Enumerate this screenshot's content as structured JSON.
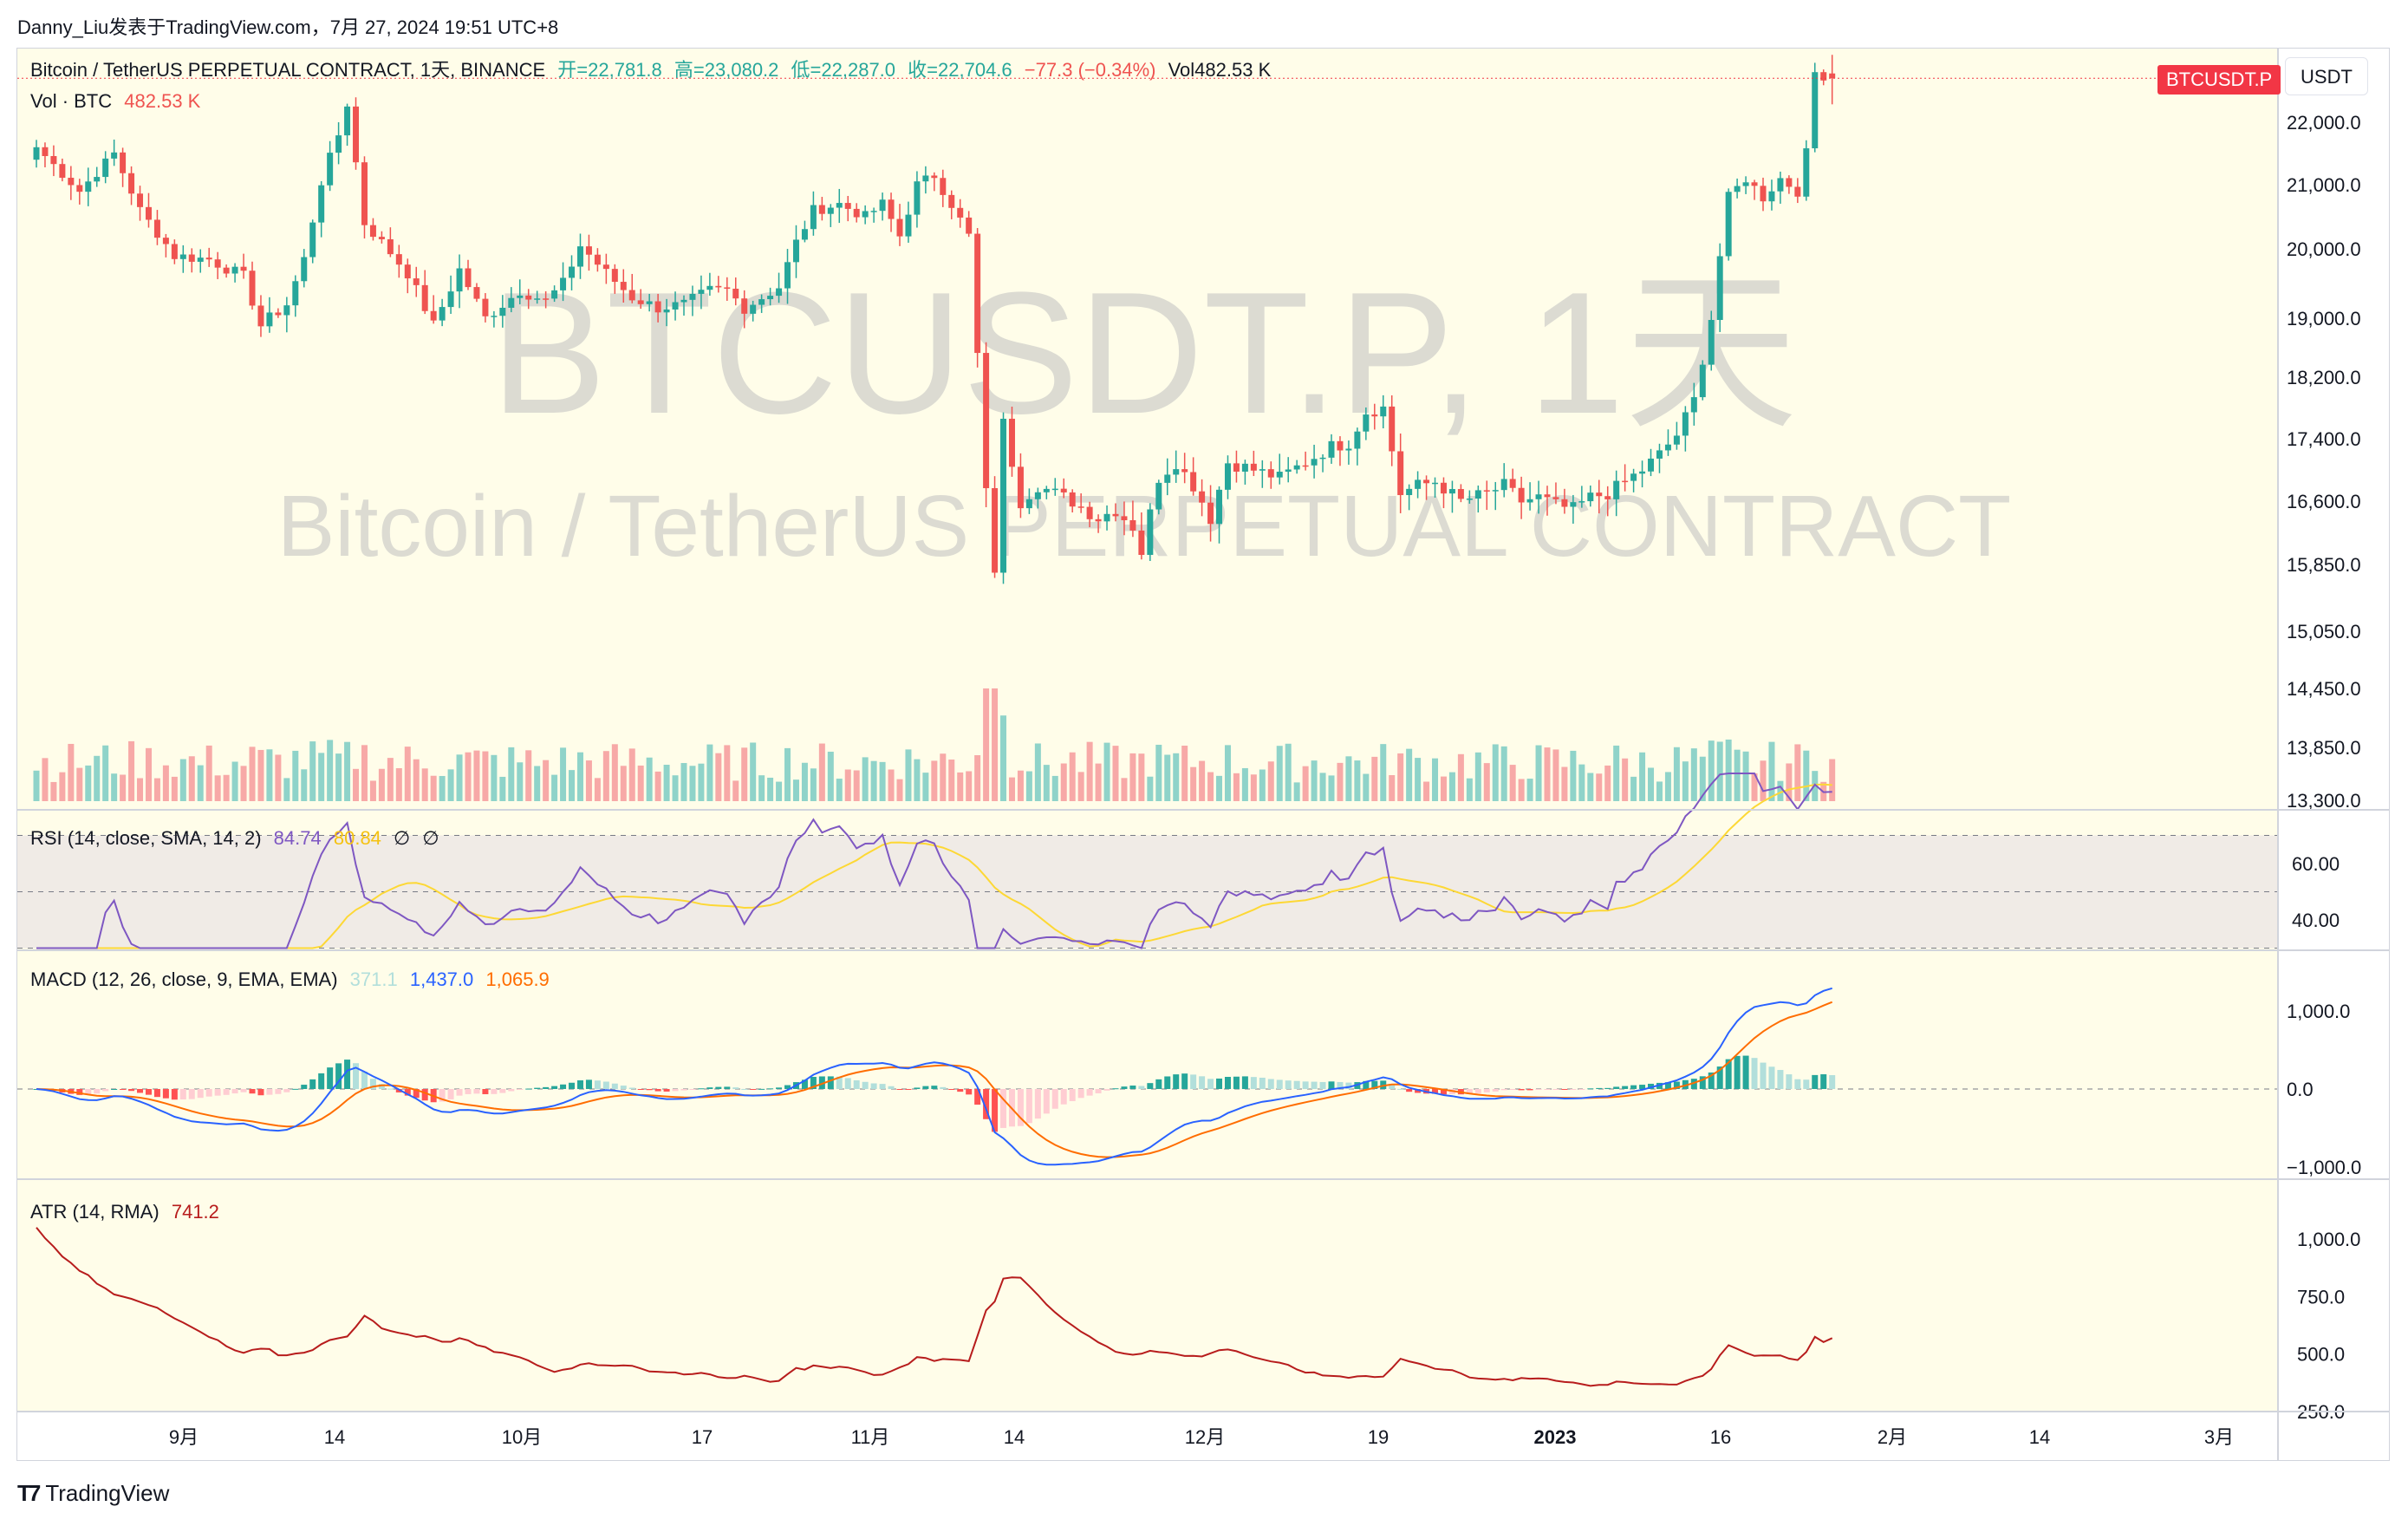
{
  "author": "Danny_Liu发表于TradingView.com，7月 27, 2024 19:51 UTC+8",
  "brand": "TradingView",
  "watermark": {
    "symbol": "BTCUSDT.P, 1天",
    "description": "Bitcoin / TetherUS PERPETUAL CONTRACT"
  },
  "header": {
    "instrument": "Bitcoin / TetherUS PERPETUAL CONTRACT, 1天, BINANCE",
    "open": "开=22,781.8",
    "high": "高=23,080.2",
    "low": "低=22,287.0",
    "close": "收=22,704.6",
    "change": "−77.3 (−0.34%)",
    "volume": "Vol482.53 K",
    "vol_label": "Vol · BTC",
    "vol_value": "482.53 K"
  },
  "price_tag": "BTCUSDT.P",
  "currency": "USDT",
  "colors": {
    "up": "#26a69a",
    "down": "#ef5350",
    "up_vol": "#8fd3c9",
    "down_vol": "#f7a9a7",
    "rsi": "#7e57c2",
    "rsi_ma": "#fdd835",
    "macd": "#2962ff",
    "signal": "#ff6d00",
    "atr": "#b71c1c",
    "bg": "#fffde9"
  },
  "indicators": {
    "rsi": {
      "label": "RSI (14, close, SMA, 14, 2)",
      "value": "84.74",
      "ma": "80.84",
      "extra1": "∅",
      "extra2": "∅",
      "ticks": [
        "60.00",
        "40.00"
      ]
    },
    "macd": {
      "label": "MACD (12, 26, close, 9, EMA, EMA)",
      "hist": "371.1",
      "macd": "1,437.0",
      "signal": "1,065.9",
      "ticks": [
        "1,000.0",
        "0.0",
        "−1,000.0"
      ]
    },
    "atr": {
      "label": "ATR (14, RMA)",
      "value": "741.2",
      "ticks": [
        "1,000.0",
        "750.0",
        "500.0",
        "250.0"
      ]
    }
  },
  "x_axis_labels": [
    "9月",
    "14",
    "10月",
    "17",
    "11月",
    "14",
    "12月",
    "19",
    "2023",
    "16",
    "2月",
    "14",
    "3月"
  ],
  "chart_data": {
    "type": "candlestick",
    "symbol": "BTCUSDT.P",
    "y_ticks": [
      22000,
      21000,
      20000,
      19000,
      18200,
      17400,
      16600,
      15850,
      15050,
      14450,
      13850,
      13300
    ],
    "first_date": "2022-08-26",
    "last_close": 22704.6,
    "anchors": [
      [
        0,
        21600
      ],
      [
        5,
        20900
      ],
      [
        9,
        21500
      ],
      [
        12,
        20600
      ],
      [
        16,
        19900
      ],
      [
        20,
        19850
      ],
      [
        24,
        19600
      ],
      [
        26,
        18900
      ],
      [
        29,
        19200
      ],
      [
        31,
        19850
      ],
      [
        33,
        21050
      ],
      [
        35,
        21800
      ],
      [
        36,
        22300
      ],
      [
        38,
        20400
      ],
      [
        41,
        19950
      ],
      [
        43,
        19650
      ],
      [
        46,
        18900
      ],
      [
        49,
        19700
      ],
      [
        52,
        19000
      ],
      [
        56,
        19400
      ],
      [
        59,
        19250
      ],
      [
        61,
        19500
      ],
      [
        63,
        20050
      ],
      [
        66,
        19650
      ],
      [
        69,
        19300
      ],
      [
        72,
        19150
      ],
      [
        75,
        19200
      ],
      [
        78,
        19400
      ],
      [
        80,
        19400
      ],
      [
        82,
        19150
      ],
      [
        84,
        19300
      ],
      [
        86,
        19450
      ],
      [
        88,
        20100
      ],
      [
        90,
        20600
      ],
      [
        93,
        20700
      ],
      [
        96,
        20500
      ],
      [
        98,
        20700
      ],
      [
        100,
        20200
      ],
      [
        102,
        21000
      ],
      [
        104,
        21150
      ],
      [
        106,
        20700
      ],
      [
        108,
        20200
      ],
      [
        109,
        18500
      ],
      [
        110,
        16700
      ],
      [
        111,
        15800
      ],
      [
        112,
        17600
      ],
      [
        114,
        16600
      ],
      [
        116,
        16800
      ],
      [
        118,
        16700
      ],
      [
        120,
        16600
      ],
      [
        123,
        16400
      ],
      [
        125,
        16500
      ],
      [
        127,
        16300
      ],
      [
        128,
        16000
      ],
      [
        130,
        16900
      ],
      [
        132,
        17100
      ],
      [
        134,
        16800
      ],
      [
        136,
        16400
      ],
      [
        138,
        17100
      ],
      [
        141,
        17000
      ],
      [
        144,
        16900
      ],
      [
        147,
        17100
      ],
      [
        150,
        17300
      ],
      [
        152,
        17350
      ],
      [
        154,
        17750
      ],
      [
        156,
        17800
      ],
      [
        158,
        16700
      ],
      [
        160,
        16800
      ],
      [
        162,
        16850
      ],
      [
        165,
        16600
      ],
      [
        168,
        16700
      ],
      [
        170,
        16800
      ],
      [
        172,
        16600
      ],
      [
        174,
        16650
      ],
      [
        176,
        16550
      ],
      [
        178,
        16500
      ],
      [
        180,
        16650
      ],
      [
        182,
        16700
      ],
      [
        184,
        16850
      ],
      [
        186,
        17000
      ],
      [
        188,
        17200
      ],
      [
        190,
        17450
      ],
      [
        192,
        17900
      ],
      [
        194,
        19000
      ],
      [
        196,
        20800
      ],
      [
        198,
        21100
      ],
      [
        200,
        20800
      ],
      [
        202,
        21100
      ],
      [
        204,
        20900
      ],
      [
        205,
        21500
      ],
      [
        206,
        22800
      ],
      [
        208,
        22705
      ]
    ],
    "x_axis_labels": [
      "9月",
      "14",
      "10月",
      "17",
      "11月",
      "14",
      "12月",
      "19",
      "2023",
      "16",
      "2月",
      "14",
      "3月"
    ],
    "volume_label": "Vol · BTC",
    "panes": [
      "price",
      "RSI (14)",
      "MACD (12, 26, 9)",
      "ATR (14)"
    ]
  }
}
